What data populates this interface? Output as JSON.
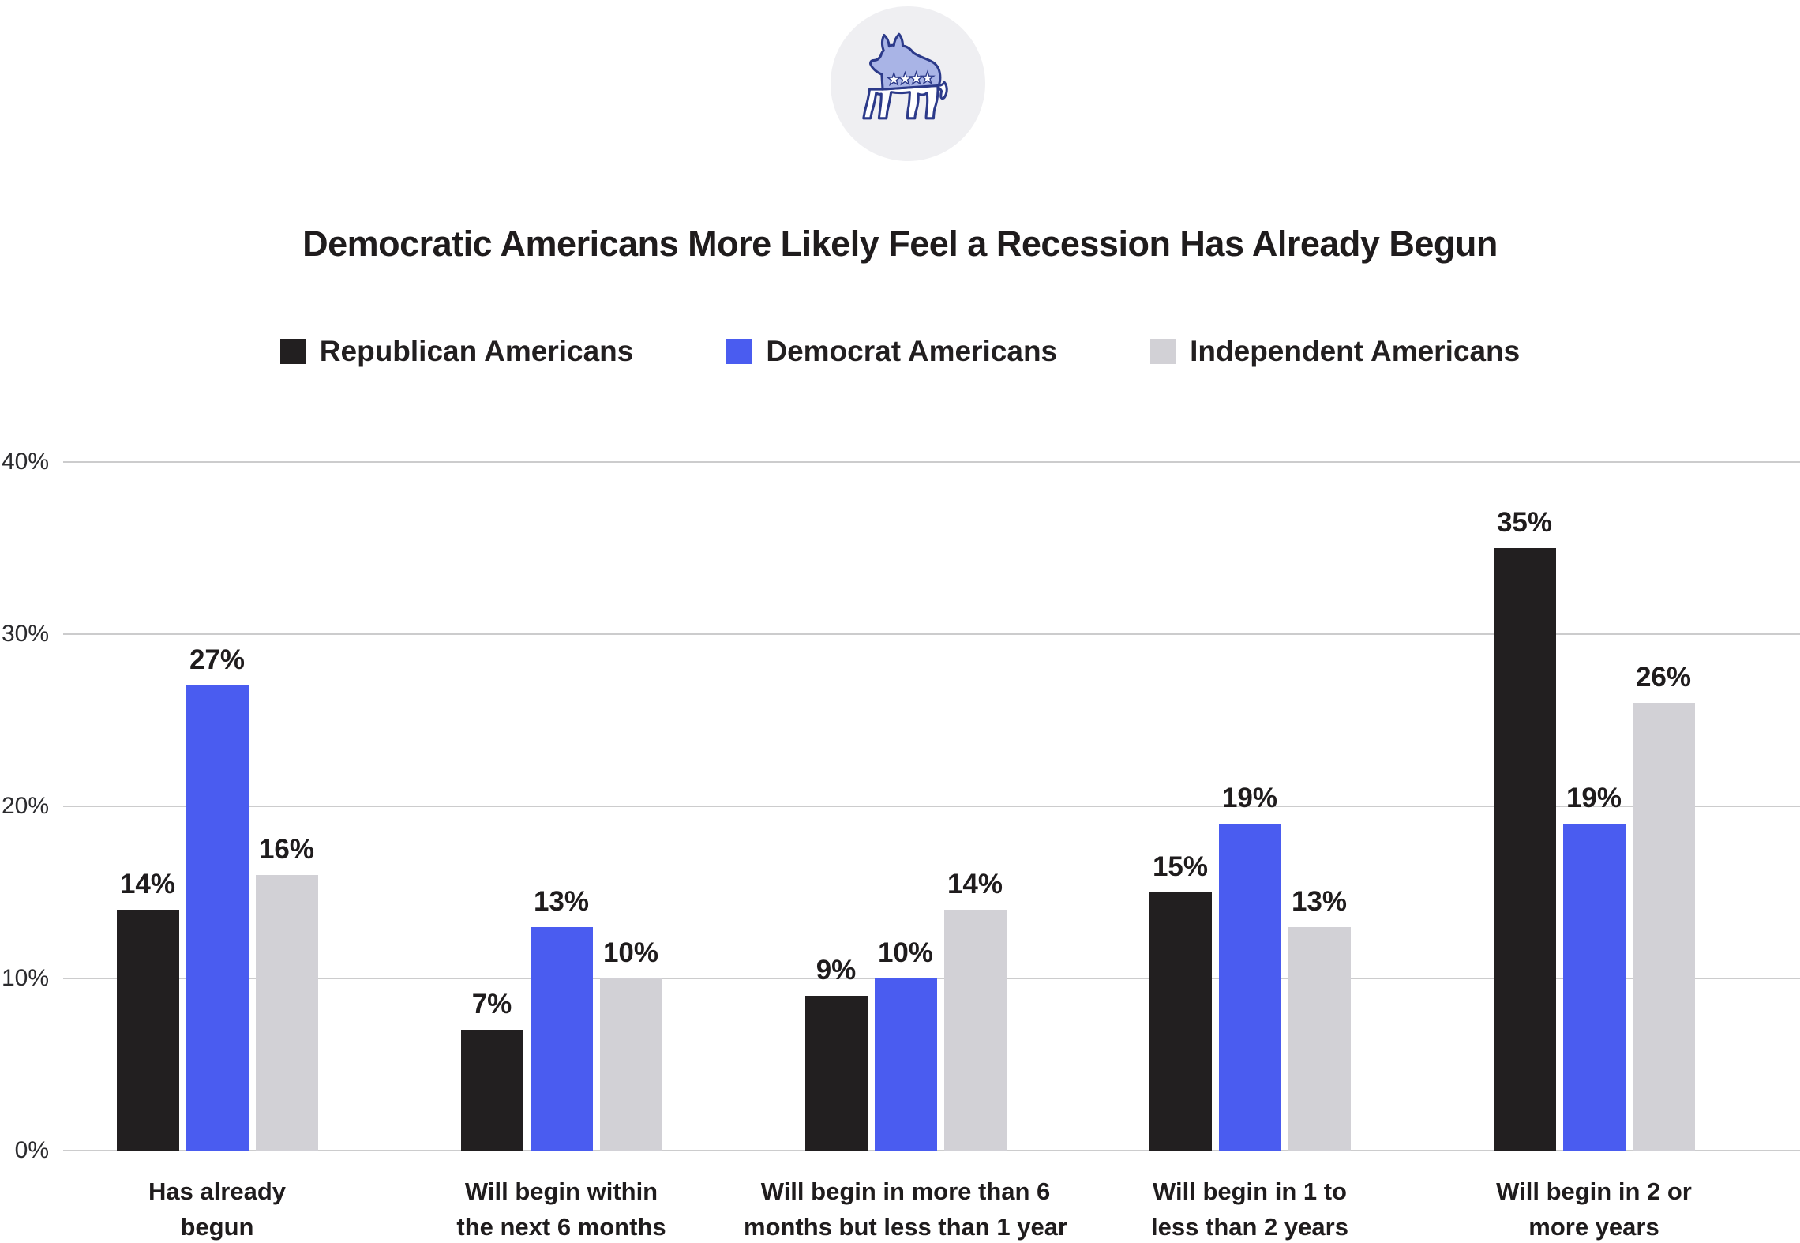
{
  "icons": {
    "logo": "democratic-donkey-icon",
    "logo_description": "Democratic party donkey with four stars inside a light circle",
    "logo_colors": {
      "body": "#a9b4e6",
      "outline": "#2c3a8a",
      "stars": "#ffffff",
      "circle_bg": "#efeff2"
    }
  },
  "header": {
    "title": "Democratic Americans More Likely Feel a Recession Has Already Begun"
  },
  "chart_data": {
    "type": "bar",
    "title": "Democratic Americans More Likely Feel a Recession Has Already Begun",
    "xlabel": "",
    "ylabel": "",
    "ylim": [
      0,
      40
    ],
    "grid": "horizontal",
    "legend_position": "top",
    "value_suffix": "%",
    "categories": [
      "Has already begun",
      "Will begin within the next 6 months",
      "Will begin in more than 6 months but less than 1 year",
      "Will begin in 1 to less than 2 years",
      "Will begin in 2 or more years"
    ],
    "category_label_lines": [
      [
        "Has already",
        "begun"
      ],
      [
        "Will begin within",
        "the next 6 months"
      ],
      [
        "Will begin in more than 6",
        "months but less than 1 year"
      ],
      [
        "Will begin in 1 to",
        "less than 2 years"
      ],
      [
        "Will begin in 2 or",
        "more years"
      ]
    ],
    "series": [
      {
        "name": "Republican Americans",
        "color": "#221f20",
        "values": [
          14,
          7,
          9,
          15,
          35
        ]
      },
      {
        "name": "Democrat Americans",
        "color": "#4a5cf0",
        "values": [
          27,
          13,
          10,
          19,
          19
        ]
      },
      {
        "name": "Independent Americans",
        "color": "#d2d1d6",
        "values": [
          16,
          10,
          14,
          13,
          26
        ]
      }
    ],
    "data_labels": [
      [
        "14%",
        "7%",
        "9%",
        "15%",
        "35%"
      ],
      [
        "27%",
        "13%",
        "10%",
        "19%",
        "19%"
      ],
      [
        "16%",
        "10%",
        "14%",
        "13%",
        "26%"
      ]
    ],
    "yticks": [
      {
        "label": "0%",
        "value": 0
      },
      {
        "label": "10%",
        "value": 10
      },
      {
        "label": "20%",
        "value": 20
      },
      {
        "label": "30%",
        "value": 30
      },
      {
        "label": "40%",
        "value": 40
      }
    ]
  }
}
